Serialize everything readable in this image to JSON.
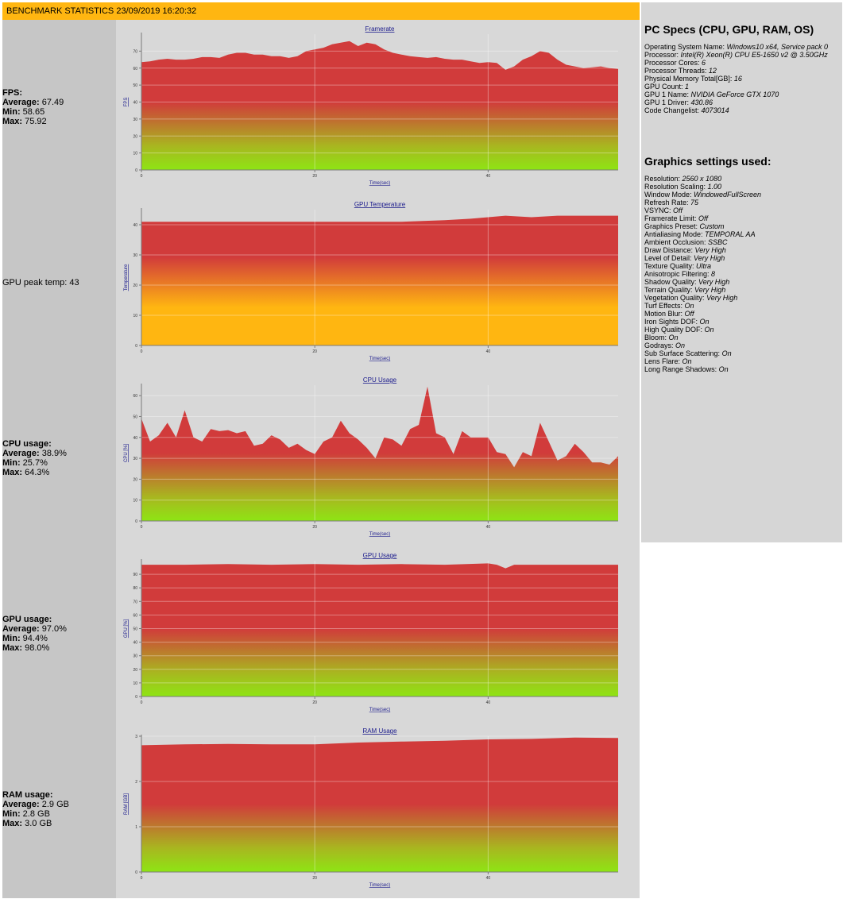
{
  "header": {
    "title": "BENCHMARK STATISTICS 23/09/2019 16:20:32"
  },
  "stats": [
    {
      "lines": [
        {
          "label": "FPS:",
          "value": ""
        },
        {
          "label": "Average:",
          "value": " 67.49"
        },
        {
          "label": "Min:",
          "value": " 58.65"
        },
        {
          "label": "Max:",
          "value": " 75.92"
        }
      ]
    },
    {
      "lines": [
        {
          "label": "",
          "value": "GPU peak temp: 43"
        }
      ]
    },
    {
      "lines": [
        {
          "label": "CPU usage:",
          "value": ""
        },
        {
          "label": "Average:",
          "value": " 38.9%"
        },
        {
          "label": "Min:",
          "value": " 25.7%"
        },
        {
          "label": "Max:",
          "value": " 64.3%"
        }
      ]
    },
    {
      "lines": [
        {
          "label": "GPU usage:",
          "value": ""
        },
        {
          "label": "Average:",
          "value": " 97.0%"
        },
        {
          "label": "Min:",
          "value": " 94.4%"
        },
        {
          "label": "Max:",
          "value": " 98.0%"
        }
      ]
    },
    {
      "lines": [
        {
          "label": "RAM usage:",
          "value": ""
        },
        {
          "label": "Average:",
          "value": " 2.9 GB"
        },
        {
          "label": "Min:",
          "value": " 2.8 GB"
        },
        {
          "label": "Max:",
          "value": " 3.0 GB"
        }
      ]
    }
  ],
  "pc_specs": {
    "title": "PC Specs (CPU, GPU, RAM, OS)",
    "rows": [
      {
        "k": "Operating System Name:",
        "v": "Windows10 x64, Service pack 0"
      },
      {
        "k": "Processor:",
        "v": "Intel(R) Xeon(R) CPU E5-1650 v2 @ 3.50GHz"
      },
      {
        "k": "Processor Cores:",
        "v": "6"
      },
      {
        "k": "Processor Threads:",
        "v": "12"
      },
      {
        "k": "Physical Memory Total[GB]:",
        "v": "16"
      },
      {
        "k": "GPU Count:",
        "v": "1"
      },
      {
        "k": "GPU 1 Name:",
        "v": "NVIDIA GeForce GTX 1070"
      },
      {
        "k": "GPU 1 Driver:",
        "v": "430.86"
      },
      {
        "k": "Code Changelist:",
        "v": "4073014"
      }
    ]
  },
  "graphics_settings": {
    "title": "Graphics settings used:",
    "rows": [
      {
        "k": "Resolution:",
        "v": "2560 x 1080"
      },
      {
        "k": "Resolution Scaling:",
        "v": "1.00"
      },
      {
        "k": "Window Mode:",
        "v": "WindowedFullScreen"
      },
      {
        "k": "Refresh Rate:",
        "v": "75"
      },
      {
        "k": "VSYNC:",
        "v": "Off"
      },
      {
        "k": "Framerate Limit:",
        "v": "Off"
      },
      {
        "k": "Graphics Preset:",
        "v": "Custom"
      },
      {
        "k": "Antialiasing Mode:",
        "v": "TEMPORAL AA"
      },
      {
        "k": "Ambient Occlusion:",
        "v": "SSBC"
      },
      {
        "k": "Draw Distance:",
        "v": "Very High"
      },
      {
        "k": "Level of Detail:",
        "v": "Very High"
      },
      {
        "k": "Texture Quality:",
        "v": "Ultra"
      },
      {
        "k": "Anisotropic Filtering:",
        "v": "8"
      },
      {
        "k": "Shadow Quality:",
        "v": "Very High"
      },
      {
        "k": "Terrain Quality:",
        "v": "Very High"
      },
      {
        "k": "Vegetation Quality:",
        "v": "Very High"
      },
      {
        "k": "Turf Effects:",
        "v": "On"
      },
      {
        "k": "Motion Blur:",
        "v": "Off"
      },
      {
        "k": "Iron Sights DOF:",
        "v": "On"
      },
      {
        "k": "High Quality DOF:",
        "v": "On"
      },
      {
        "k": "Bloom:",
        "v": "On"
      },
      {
        "k": "Godrays:",
        "v": "On"
      },
      {
        "k": "Sub Surface Scattering:",
        "v": "On"
      },
      {
        "k": "Lens Flare:",
        "v": "On"
      },
      {
        "k": "Long Range Shadows:",
        "v": "On"
      }
    ]
  },
  "colors": {
    "header": "#ffb611",
    "red": "#d13b3b",
    "green": "#8ee514",
    "orange": "#ffb611",
    "grid": "#b4b8d8",
    "link": "#1a1a8c"
  },
  "chart_data": [
    {
      "type": "area",
      "title": "Framerate",
      "xlabel": "Time(sec)",
      "ylabel": "FPS",
      "xlim": [
        0,
        55
      ],
      "ylim": [
        0,
        80
      ],
      "xticks": [
        0,
        20,
        40
      ],
      "yticks": [
        0,
        10,
        20,
        30,
        40,
        50,
        60,
        70
      ],
      "fill": "red-to-green",
      "x": [
        0,
        1,
        2,
        3,
        4,
        5,
        6,
        7,
        8,
        9,
        10,
        11,
        12,
        13,
        14,
        15,
        16,
        17,
        18,
        19,
        20,
        21,
        22,
        23,
        24,
        25,
        26,
        27,
        28,
        29,
        30,
        31,
        32,
        33,
        34,
        35,
        36,
        37,
        38,
        39,
        40,
        41,
        42,
        43,
        44,
        45,
        46,
        47,
        48,
        49,
        50,
        51,
        52,
        53,
        54,
        55
      ],
      "values": [
        63.5,
        64,
        65,
        65.5,
        65,
        65,
        65.5,
        66.5,
        66.5,
        66,
        68,
        69,
        69,
        68,
        68,
        67,
        67,
        66,
        67,
        70,
        71,
        72,
        74,
        75,
        75.9,
        73,
        75,
        74,
        71,
        69,
        68,
        67,
        66.5,
        66,
        66.5,
        65.5,
        65,
        65,
        64,
        63,
        63.5,
        63,
        59,
        61,
        65,
        67,
        70,
        69,
        65,
        62,
        61,
        60,
        60.5,
        61,
        60,
        59.5
      ]
    },
    {
      "type": "area",
      "title": "GPU Temperature",
      "xlabel": "Time(sec)",
      "ylabel": "Temperature",
      "xlim": [
        0,
        55
      ],
      "ylim": [
        0,
        45
      ],
      "xticks": [
        0,
        20,
        40
      ],
      "yticks": [
        0,
        10,
        20,
        30,
        40
      ],
      "fill": "red-to-orange",
      "x": [
        0,
        5,
        10,
        15,
        20,
        25,
        30,
        35,
        38,
        40,
        42,
        45,
        48,
        50,
        55
      ],
      "values": [
        41,
        41,
        41,
        41,
        41,
        41,
        41,
        41.5,
        42,
        42.5,
        43,
        42.5,
        43,
        43,
        43
      ]
    },
    {
      "type": "area",
      "title": "CPU Usage",
      "xlabel": "Time(sec)",
      "ylabel": "CPU [%]",
      "xlim": [
        0,
        55
      ],
      "ylim": [
        0,
        65
      ],
      "xticks": [
        0,
        20,
        40
      ],
      "yticks": [
        0,
        10,
        20,
        30,
        40,
        50,
        60
      ],
      "fill": "red-to-green",
      "x": [
        0,
        1,
        2,
        3,
        4,
        5,
        6,
        7,
        8,
        9,
        10,
        11,
        12,
        13,
        14,
        15,
        16,
        17,
        18,
        19,
        20,
        21,
        22,
        23,
        24,
        25,
        26,
        27,
        28,
        29,
        30,
        31,
        32,
        33,
        34,
        35,
        36,
        37,
        38,
        39,
        40,
        41,
        42,
        43,
        44,
        45,
        46,
        47,
        48,
        49,
        50,
        51,
        52,
        53,
        54,
        55
      ],
      "values": [
        49,
        38,
        41,
        47,
        40,
        53,
        40,
        38,
        44,
        43,
        43.5,
        42,
        43,
        36,
        37,
        41,
        39,
        35,
        37,
        34,
        32,
        38,
        40,
        48,
        42,
        39,
        35,
        30,
        40,
        39,
        36,
        44,
        46,
        64.3,
        42,
        40,
        32,
        43,
        40,
        40,
        40,
        33,
        32,
        25.7,
        33,
        31,
        47,
        38,
        29,
        31,
        37,
        33,
        28,
        28,
        27,
        31
      ]
    },
    {
      "type": "area",
      "title": "GPU Usage",
      "xlabel": "Time(sec)",
      "ylabel": "GPU [%]",
      "xlim": [
        0,
        55
      ],
      "ylim": [
        0,
        100
      ],
      "xticks": [
        0,
        20,
        40
      ],
      "yticks": [
        0,
        10,
        20,
        30,
        40,
        50,
        60,
        70,
        80,
        90
      ],
      "fill": "red-to-green",
      "x": [
        0,
        5,
        10,
        15,
        20,
        25,
        30,
        35,
        40,
        41,
        42,
        43,
        45,
        50,
        55
      ],
      "values": [
        97,
        97,
        97.5,
        97,
        97.5,
        97,
        97.5,
        97,
        98,
        97,
        94.4,
        97,
        97,
        97,
        97
      ]
    },
    {
      "type": "area",
      "title": "RAM Usage",
      "xlabel": "Time(sec)",
      "ylabel": "RAM [GB]",
      "xlim": [
        0,
        55
      ],
      "ylim": [
        0,
        3
      ],
      "xticks": [
        0,
        20,
        40
      ],
      "yticks": [
        0,
        1,
        2,
        3
      ],
      "fill": "red-to-green",
      "x": [
        0,
        5,
        10,
        15,
        20,
        25,
        30,
        35,
        40,
        45,
        50,
        55
      ],
      "values": [
        2.8,
        2.82,
        2.83,
        2.82,
        2.82,
        2.86,
        2.88,
        2.9,
        2.93,
        2.94,
        2.97,
        2.96
      ]
    }
  ]
}
